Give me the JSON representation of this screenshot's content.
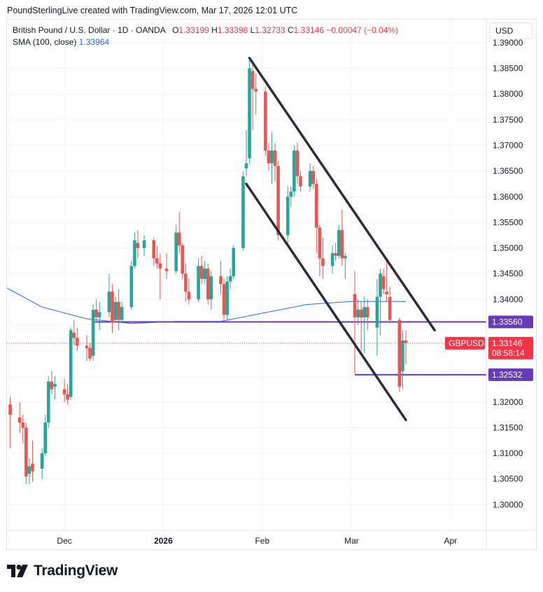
{
  "header": {
    "credit": "PoundSterlingLive created with TradingView.com, Mar 17, 2026 12:01 UTC"
  },
  "legend": {
    "symbol": "British Pound / U.S. Dollar · 1D · OANDA",
    "o_label": "O",
    "o_value": "1.33199",
    "h_label": "H",
    "h_value": "1.33398",
    "l_label": "L",
    "l_value": "1.32733",
    "c_label": "C",
    "c_value": "1.33146",
    "change": "−0.00047 (−0.04%)",
    "sma_label": "SMA (100, close)",
    "sma_value": "1.33964"
  },
  "currency": "USD",
  "footer": {
    "logo_text": "TradingView"
  },
  "colors": {
    "up": "#26a69a",
    "down": "#ef5350",
    "sma": "#2962ff",
    "level_line": "#673ab7",
    "level_tag": "#673ab7",
    "price_tag": "#f23645",
    "channel": "#2a2e39",
    "grid": "#f0f3fa"
  },
  "chart_data": {
    "type": "candlestick",
    "title": "British Pound / U.S. Dollar · 1D · OANDA",
    "ylim": [
      1.295,
      1.3945
    ],
    "y_ticks": [
      "1.39000",
      "1.38500",
      "1.38000",
      "1.37500",
      "1.37000",
      "1.36500",
      "1.36000",
      "1.35500",
      "1.35000",
      "1.34500",
      "1.34000",
      "1.33500",
      "1.33000",
      "1.32500",
      "1.32000",
      "1.31500",
      "1.31000",
      "1.30500",
      "1.30000"
    ],
    "x_ticks": [
      {
        "date": "2025-12-01",
        "label": "Dec"
      },
      {
        "date": "2026-01-01",
        "label": "2026"
      },
      {
        "date": "2026-02-01",
        "label": "Feb"
      },
      {
        "date": "2026-03-01",
        "label": "Mar"
      },
      {
        "date": "2026-04-01",
        "label": "Apr"
      }
    ],
    "x_start": "2025-11-13",
    "x_end": "2026-04-12",
    "candles": [
      {
        "date": "2025-11-14",
        "o": 1.3195,
        "h": 1.321,
        "l": 1.311,
        "c": 1.3175
      },
      {
        "date": "2025-11-17",
        "o": 1.317,
        "h": 1.32,
        "l": 1.314,
        "c": 1.316
      },
      {
        "date": "2025-11-18",
        "o": 1.316,
        "h": 1.3175,
        "l": 1.312,
        "c": 1.315
      },
      {
        "date": "2025-11-19",
        "o": 1.315,
        "h": 1.316,
        "l": 1.304,
        "c": 1.3055
      },
      {
        "date": "2025-11-20",
        "o": 1.306,
        "h": 1.309,
        "l": 1.304,
        "c": 1.3075
      },
      {
        "date": "2025-11-21",
        "o": 1.308,
        "h": 1.3125,
        "l": 1.3045,
        "c": 1.3065
      },
      {
        "date": "2025-11-24",
        "o": 1.307,
        "h": 1.311,
        "l": 1.305,
        "c": 1.31
      },
      {
        "date": "2025-11-25",
        "o": 1.31,
        "h": 1.3175,
        "l": 1.3095,
        "c": 1.316
      },
      {
        "date": "2025-11-26",
        "o": 1.316,
        "h": 1.325,
        "l": 1.315,
        "c": 1.324
      },
      {
        "date": "2025-11-27",
        "o": 1.324,
        "h": 1.326,
        "l": 1.3215,
        "c": 1.3225
      },
      {
        "date": "2025-11-28",
        "o": 1.323,
        "h": 1.325,
        "l": 1.3205,
        "c": 1.3235
      },
      {
        "date": "2025-12-01",
        "o": 1.3225,
        "h": 1.3245,
        "l": 1.32,
        "c": 1.3215
      },
      {
        "date": "2025-12-02",
        "o": 1.3215,
        "h": 1.3235,
        "l": 1.3195,
        "c": 1.3205
      },
      {
        "date": "2025-12-03",
        "o": 1.321,
        "h": 1.3345,
        "l": 1.3205,
        "c": 1.334
      },
      {
        "date": "2025-12-04",
        "o": 1.3335,
        "h": 1.336,
        "l": 1.331,
        "c": 1.3325
      },
      {
        "date": "2025-12-05",
        "o": 1.3325,
        "h": 1.3345,
        "l": 1.33,
        "c": 1.331
      },
      {
        "date": "2025-12-08",
        "o": 1.331,
        "h": 1.333,
        "l": 1.328,
        "c": 1.3305
      },
      {
        "date": "2025-12-09",
        "o": 1.3305,
        "h": 1.3315,
        "l": 1.328,
        "c": 1.3285
      },
      {
        "date": "2025-12-10",
        "o": 1.329,
        "h": 1.339,
        "l": 1.328,
        "c": 1.338
      },
      {
        "date": "2025-12-11",
        "o": 1.338,
        "h": 1.34,
        "l": 1.3355,
        "c": 1.3365
      },
      {
        "date": "2025-12-12",
        "o": 1.3365,
        "h": 1.3395,
        "l": 1.334,
        "c": 1.3375
      },
      {
        "date": "2025-12-15",
        "o": 1.3375,
        "h": 1.345,
        "l": 1.3365,
        "c": 1.3415
      },
      {
        "date": "2025-12-16",
        "o": 1.3415,
        "h": 1.343,
        "l": 1.3335,
        "c": 1.3355
      },
      {
        "date": "2025-12-17",
        "o": 1.336,
        "h": 1.3405,
        "l": 1.3355,
        "c": 1.3395
      },
      {
        "date": "2025-12-18",
        "o": 1.3395,
        "h": 1.342,
        "l": 1.334,
        "c": 1.336
      },
      {
        "date": "2025-12-19",
        "o": 1.336,
        "h": 1.3395,
        "l": 1.3355,
        "c": 1.3385
      },
      {
        "date": "2025-12-22",
        "o": 1.3385,
        "h": 1.3475,
        "l": 1.338,
        "c": 1.3465
      },
      {
        "date": "2025-12-23",
        "o": 1.3465,
        "h": 1.353,
        "l": 1.346,
        "c": 1.3515
      },
      {
        "date": "2025-12-24",
        "o": 1.351,
        "h": 1.3535,
        "l": 1.348,
        "c": 1.35
      },
      {
        "date": "2025-12-26",
        "o": 1.35,
        "h": 1.3525,
        "l": 1.3485,
        "c": 1.3515
      },
      {
        "date": "2025-12-29",
        "o": 1.3515,
        "h": 1.352,
        "l": 1.3465,
        "c": 1.348
      },
      {
        "date": "2025-12-30",
        "o": 1.348,
        "h": 1.3505,
        "l": 1.346,
        "c": 1.347
      },
      {
        "date": "2025-12-31",
        "o": 1.347,
        "h": 1.349,
        "l": 1.34,
        "c": 1.346
      },
      {
        "date": "2026-01-02",
        "o": 1.346,
        "h": 1.349,
        "l": 1.344,
        "c": 1.3455
      },
      {
        "date": "2026-01-05",
        "o": 1.3455,
        "h": 1.3545,
        "l": 1.345,
        "c": 1.353
      },
      {
        "date": "2026-01-06",
        "o": 1.353,
        "h": 1.357,
        "l": 1.349,
        "c": 1.3505
      },
      {
        "date": "2026-01-07",
        "o": 1.3505,
        "h": 1.351,
        "l": 1.344,
        "c": 1.345
      },
      {
        "date": "2026-01-08",
        "o": 1.345,
        "h": 1.347,
        "l": 1.3395,
        "c": 1.3415
      },
      {
        "date": "2026-01-09",
        "o": 1.3415,
        "h": 1.344,
        "l": 1.339,
        "c": 1.34
      },
      {
        "date": "2026-01-12",
        "o": 1.34,
        "h": 1.348,
        "l": 1.3395,
        "c": 1.3465
      },
      {
        "date": "2026-01-13",
        "o": 1.3465,
        "h": 1.3485,
        "l": 1.343,
        "c": 1.344
      },
      {
        "date": "2026-01-14",
        "o": 1.344,
        "h": 1.3475,
        "l": 1.343,
        "c": 1.346
      },
      {
        "date": "2026-01-15",
        "o": 1.346,
        "h": 1.347,
        "l": 1.339,
        "c": 1.34
      },
      {
        "date": "2026-01-16",
        "o": 1.34,
        "h": 1.3455,
        "l": 1.338,
        "c": 1.3445
      },
      {
        "date": "2026-01-19",
        "o": 1.3445,
        "h": 1.3475,
        "l": 1.341,
        "c": 1.343
      },
      {
        "date": "2026-01-20",
        "o": 1.343,
        "h": 1.344,
        "l": 1.336,
        "c": 1.337
      },
      {
        "date": "2026-01-21",
        "o": 1.337,
        "h": 1.3445,
        "l": 1.336,
        "c": 1.3435
      },
      {
        "date": "2026-01-22",
        "o": 1.3435,
        "h": 1.346,
        "l": 1.342,
        "c": 1.3445
      },
      {
        "date": "2026-01-23",
        "o": 1.3445,
        "h": 1.3505,
        "l": 1.344,
        "c": 1.35
      },
      {
        "date": "2026-01-26",
        "o": 1.35,
        "h": 1.365,
        "l": 1.3495,
        "c": 1.364
      },
      {
        "date": "2026-01-27",
        "o": 1.3655,
        "h": 1.373,
        "l": 1.364,
        "c": 1.3665
      },
      {
        "date": "2026-01-28",
        "o": 1.3675,
        "h": 1.387,
        "l": 1.3665,
        "c": 1.385
      },
      {
        "date": "2026-01-29",
        "o": 1.3845,
        "h": 1.386,
        "l": 1.373,
        "c": 1.381
      },
      {
        "date": "2026-01-30",
        "o": 1.381,
        "h": 1.384,
        "l": 1.376,
        "c": 1.3805
      },
      {
        "date": "2026-02-02",
        "o": 1.3805,
        "h": 1.3815,
        "l": 1.368,
        "c": 1.369
      },
      {
        "date": "2026-02-03",
        "o": 1.369,
        "h": 1.3705,
        "l": 1.365,
        "c": 1.3665
      },
      {
        "date": "2026-02-04",
        "o": 1.3665,
        "h": 1.3725,
        "l": 1.3625,
        "c": 1.369
      },
      {
        "date": "2026-02-05",
        "o": 1.369,
        "h": 1.3705,
        "l": 1.363,
        "c": 1.366
      },
      {
        "date": "2026-02-06",
        "o": 1.366,
        "h": 1.367,
        "l": 1.3515,
        "c": 1.3525
      },
      {
        "date": "2026-02-09",
        "o": 1.3525,
        "h": 1.362,
        "l": 1.351,
        "c": 1.36
      },
      {
        "date": "2026-02-10",
        "o": 1.36,
        "h": 1.362,
        "l": 1.358,
        "c": 1.361
      },
      {
        "date": "2026-02-11",
        "o": 1.361,
        "h": 1.37,
        "l": 1.36,
        "c": 1.369
      },
      {
        "date": "2026-02-12",
        "o": 1.369,
        "h": 1.3705,
        "l": 1.3625,
        "c": 1.364
      },
      {
        "date": "2026-02-13",
        "o": 1.364,
        "h": 1.365,
        "l": 1.361,
        "c": 1.362
      },
      {
        "date": "2026-02-16",
        "o": 1.362,
        "h": 1.3665,
        "l": 1.361,
        "c": 1.365
      },
      {
        "date": "2026-02-17",
        "o": 1.365,
        "h": 1.366,
        "l": 1.3615,
        "c": 1.3625
      },
      {
        "date": "2026-02-18",
        "o": 1.3625,
        "h": 1.3635,
        "l": 1.349,
        "c": 1.354
      },
      {
        "date": "2026-02-19",
        "o": 1.354,
        "h": 1.3545,
        "l": 1.3445,
        "c": 1.348
      },
      {
        "date": "2026-02-20",
        "o": 1.348,
        "h": 1.352,
        "l": 1.344,
        "c": 1.3465
      },
      {
        "date": "2026-02-23",
        "o": 1.3465,
        "h": 1.3505,
        "l": 1.345,
        "c": 1.349
      },
      {
        "date": "2026-02-24",
        "o": 1.349,
        "h": 1.351,
        "l": 1.3475,
        "c": 1.3485
      },
      {
        "date": "2026-02-25",
        "o": 1.3485,
        "h": 1.3545,
        "l": 1.348,
        "c": 1.3535
      },
      {
        "date": "2026-02-26",
        "o": 1.3535,
        "h": 1.3575,
        "l": 1.3465,
        "c": 1.348
      },
      {
        "date": "2026-02-27",
        "o": 1.348,
        "h": 1.349,
        "l": 1.344,
        "c": 1.3485
      },
      {
        "date": "2026-03-02",
        "o": 1.341,
        "h": 1.3455,
        "l": 1.3255,
        "c": 1.3365
      },
      {
        "date": "2026-03-03",
        "o": 1.3365,
        "h": 1.34,
        "l": 1.335,
        "c": 1.338
      },
      {
        "date": "2026-03-04",
        "o": 1.338,
        "h": 1.3395,
        "l": 1.33,
        "c": 1.3365
      },
      {
        "date": "2026-03-05",
        "o": 1.3365,
        "h": 1.3405,
        "l": 1.3295,
        "c": 1.3385
      },
      {
        "date": "2026-03-06",
        "o": 1.3385,
        "h": 1.34,
        "l": 1.334,
        "c": 1.3365
      },
      {
        "date": "2026-03-09",
        "o": 1.3345,
        "h": 1.344,
        "l": 1.329,
        "c": 1.3405
      },
      {
        "date": "2026-03-10",
        "o": 1.3405,
        "h": 1.346,
        "l": 1.333,
        "c": 1.345
      },
      {
        "date": "2026-03-11",
        "o": 1.3445,
        "h": 1.346,
        "l": 1.341,
        "c": 1.342
      },
      {
        "date": "2026-03-12",
        "o": 1.3415,
        "h": 1.348,
        "l": 1.3395,
        "c": 1.341
      },
      {
        "date": "2026-03-13",
        "o": 1.3405,
        "h": 1.3425,
        "l": 1.3355,
        "c": 1.336
      },
      {
        "date": "2026-03-16",
        "o": 1.336,
        "h": 1.3365,
        "l": 1.322,
        "c": 1.323
      },
      {
        "date": "2026-03-17",
        "o": 1.326,
        "h": 1.334,
        "l": 1.3225,
        "c": 1.332
      },
      {
        "date": "2026-03-18",
        "o": 1.332,
        "h": 1.334,
        "l": 1.3273,
        "c": 1.3315
      }
    ],
    "sma": {
      "name": "SMA (100, close)",
      "points": [
        {
          "date": "2025-11-13",
          "value": 1.3422
        },
        {
          "date": "2025-11-24",
          "value": 1.3385
        },
        {
          "date": "2025-12-08",
          "value": 1.3362
        },
        {
          "date": "2025-12-22",
          "value": 1.3353
        },
        {
          "date": "2026-01-05",
          "value": 1.3357
        },
        {
          "date": "2026-01-19",
          "value": 1.3357
        },
        {
          "date": "2026-02-01",
          "value": 1.3373
        },
        {
          "date": "2026-02-15",
          "value": 1.339
        },
        {
          "date": "2026-03-01",
          "value": 1.3396
        },
        {
          "date": "2026-03-18",
          "value": 1.3396
        }
      ]
    },
    "levels": [
      {
        "value": 1.3356,
        "label": "1.33560",
        "from": "2025-12-10",
        "to": "axis"
      },
      {
        "value": 1.32532,
        "label": "1.32532",
        "from": "2026-03-02",
        "to": "axis"
      }
    ],
    "channel_lines": [
      {
        "from": {
          "date": "2026-01-28",
          "value": 1.387
        },
        "to": {
          "date": "2026-03-27",
          "value": 1.334
        }
      },
      {
        "from": {
          "date": "2026-01-27",
          "value": 1.3625
        },
        "to": {
          "date": "2026-03-18",
          "value": 1.3165
        }
      }
    ],
    "last_price": {
      "symbol": "GBPUSD",
      "value": 1.33146,
      "label": "1.33146",
      "countdown": "08:58:14"
    }
  }
}
